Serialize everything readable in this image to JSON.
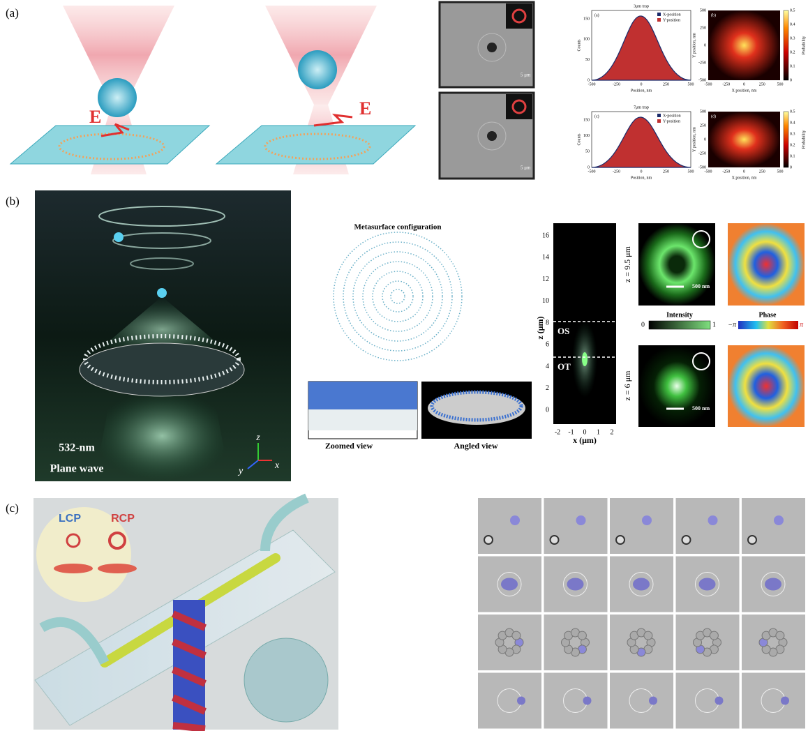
{
  "panel_a": {
    "label": "(a)",
    "field_labels": [
      "E",
      "E"
    ],
    "scale_bars": [
      "5 μm",
      "5 μm"
    ],
    "histograms": [
      {
        "title": "3μm trap",
        "tag": "(a)",
        "legend": [
          "X-position",
          "Y-position"
        ],
        "ylabel": "Counts",
        "xlabel": "Position, nm",
        "xticks": [
          "-500",
          "-250",
          "0",
          "250",
          "500"
        ],
        "yticks": [
          "0",
          "50",
          "100",
          "150"
        ]
      },
      {
        "title": "7μm trap",
        "tag": "(c)",
        "legend": [
          "X-position",
          "Y-position"
        ],
        "ylabel": "Counts",
        "xlabel": "Position, nm",
        "xticks": [
          "-500",
          "-250",
          "0",
          "250",
          "500"
        ],
        "yticks": [
          "0",
          "50",
          "100",
          "150"
        ]
      }
    ],
    "heatmaps": [
      {
        "tag": "(b)",
        "ylabel": "Y position, nm",
        "xlabel": "X position, nm",
        "xticks": [
          "-500",
          "-250",
          "0",
          "250",
          "500"
        ],
        "yticks": [
          "-500",
          "-250",
          "0",
          "250",
          "500"
        ],
        "colorbar_label": "Probability",
        "colorbar_ticks": [
          "0",
          "0.1",
          "0.2",
          "0.3",
          "0.4",
          "0.5"
        ]
      },
      {
        "tag": "(d)",
        "ylabel": "Y position, nm",
        "xlabel": "X position, nm",
        "xticks": [
          "-500",
          "-250",
          "0",
          "250",
          "500"
        ],
        "yticks": [
          "-500",
          "-250",
          "0",
          "250",
          "500"
        ],
        "colorbar_label": "Probability",
        "colorbar_ticks": [
          "0",
          "0.1",
          "0.2",
          "0.3",
          "0.4",
          "0.5"
        ]
      }
    ]
  },
  "panel_b": {
    "label": "(b)",
    "illustration": {
      "wavelength": "532-nm",
      "wave": "Plane wave",
      "axes": [
        "z",
        "y",
        "x"
      ]
    },
    "metasurface": {
      "title": "Metasurface configuration",
      "views": [
        "Zoomed view",
        "Angled view"
      ]
    },
    "profile": {
      "ylabel": "z (μm)",
      "xlabel": "x (μm)",
      "yticks": [
        "0",
        "2",
        "4",
        "6",
        "8",
        "10",
        "12",
        "14",
        "16"
      ],
      "xticks": [
        "-2",
        "-1",
        "0",
        "1",
        "2"
      ],
      "regions": [
        "OS",
        "OT"
      ]
    },
    "planes": [
      {
        "z": "z = 9.5 μm",
        "scale": "500 nm"
      },
      {
        "z": "z = 6 μm",
        "scale": "500 nm"
      }
    ],
    "intensity": {
      "title": "Intensity",
      "min": "0",
      "max": "1"
    },
    "phase": {
      "title": "Phase",
      "min": "−π",
      "max": "π"
    }
  },
  "panel_c": {
    "label": "(c)",
    "polarizations": [
      "LCP",
      "RCP"
    ]
  }
}
